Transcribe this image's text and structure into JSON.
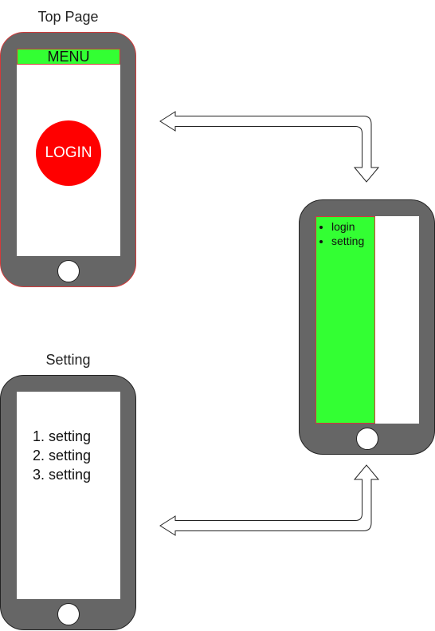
{
  "top_page": {
    "title": "Top Page",
    "menu_label": "MENU",
    "login_label": "LOGIN"
  },
  "menu_drawer": {
    "items": [
      "login",
      "setting"
    ]
  },
  "setting_page": {
    "title": "Setting",
    "items": [
      "1. setting",
      "2. setting",
      "3. setting"
    ]
  },
  "colors": {
    "menu_green": "#33ff33",
    "login_red": "#ff0000",
    "phone_body": "#666666"
  }
}
